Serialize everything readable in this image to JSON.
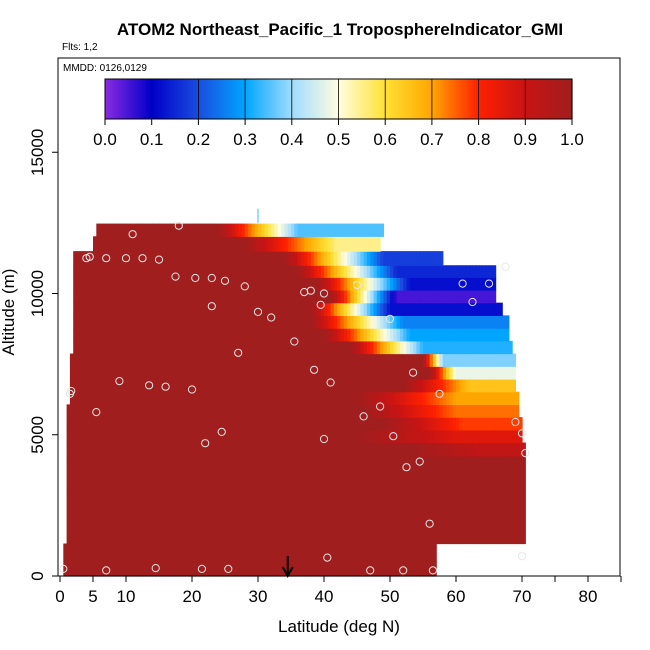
{
  "chart_data": {
    "type": "heatmap",
    "title": "ATOM2 Northeast_Pacific_1 TroposphereIndicator_GMI",
    "subtitle_lines": [
      "Flts: 1,2",
      "MMDD: 0126,0129"
    ],
    "xlabel": "Latitude (deg N)",
    "ylabel": "Altitude (m)",
    "xlim": [
      0,
      85
    ],
    "ylim": [
      0,
      18000
    ],
    "x_ticks": [
      0,
      5,
      10,
      20,
      30,
      40,
      50,
      60,
      70,
      80
    ],
    "x_minor_ticks": [
      75,
      85
    ],
    "y_ticks": [
      0,
      5000,
      10000,
      15000
    ],
    "colorbar": {
      "range": [
        0,
        1
      ],
      "tick_labels": [
        "0.0",
        "0.1",
        "0.2",
        "0.3",
        "0.4",
        "0.5",
        "0.6",
        "0.7",
        "0.8",
        "0.9",
        "1.0"
      ],
      "stops": [
        "#8a2be2",
        "#0000c8",
        "#1a4de0",
        "#00a5ff",
        "#a0dcff",
        "#fffde0",
        "#ffe135",
        "#ffa500",
        "#ff2000",
        "#c81414",
        "#a01e1e"
      ]
    },
    "arrow_marker_latitude": 34.5,
    "layers": [
      {
        "alt": 12250,
        "lat_min": 5.5,
        "lat_max": 49,
        "transition": [
          24,
          36
        ],
        "end_value": 0.35
      },
      {
        "alt": 11800,
        "lat_min": 5,
        "lat_max": 48.5,
        "transition": [
          28,
          42
        ],
        "end_value": 0.55
      },
      {
        "alt": 11200,
        "lat_min": 2,
        "lat_max": 58,
        "transition": [
          34,
          49
        ],
        "end_value": 0.18
      },
      {
        "alt": 10800,
        "lat_min": 2,
        "lat_max": 66,
        "transition": [
          36,
          51
        ],
        "end_value": 0.15
      },
      {
        "alt": 10350,
        "lat_min": 2,
        "lat_max": 66,
        "transition": [
          39,
          53
        ],
        "end_value": 0.12
      },
      {
        "alt": 9900,
        "lat_min": 2,
        "lat_max": 66,
        "transition": [
          41,
          51
        ],
        "end_value": 0.05
      },
      {
        "alt": 9450,
        "lat_min": 2,
        "lat_max": 67,
        "transition": [
          38,
          50
        ],
        "end_value": 0.12
      },
      {
        "alt": 9000,
        "lat_min": 2,
        "lat_max": 68,
        "transition": [
          38,
          52
        ],
        "end_value": 0.26
      },
      {
        "alt": 8550,
        "lat_min": 2,
        "lat_max": 68,
        "transition": [
          40,
          53
        ],
        "end_value": 0.3
      },
      {
        "alt": 8100,
        "lat_min": 2,
        "lat_max": 68.5,
        "transition": [
          44,
          55
        ],
        "end_value": 0.32
      },
      {
        "alt": 7650,
        "lat_min": 1.5,
        "lat_max": 69,
        "transition": [
          55,
          58
        ],
        "end_value": 0.38
      },
      {
        "alt": 7200,
        "lat_min": 1.5,
        "lat_max": 69,
        "transition": [
          56,
          60
        ],
        "end_value": 0.48
      },
      {
        "alt": 6750,
        "lat_min": 1.5,
        "lat_max": 69,
        "transition": [
          52,
          62
        ],
        "end_value": 0.65
      },
      {
        "alt": 6300,
        "lat_min": 1.5,
        "lat_max": 69.5,
        "transition": [
          45,
          60
        ],
        "end_value": 0.7
      },
      {
        "alt": 5850,
        "lat_min": 1,
        "lat_max": 69.5,
        "transition": [
          46,
          60
        ],
        "end_value": 0.74
      },
      {
        "alt": 5400,
        "lat_min": 1,
        "lat_max": 70,
        "transition": [
          49,
          61
        ],
        "end_value": 0.78
      },
      {
        "alt": 4950,
        "lat_min": 1,
        "lat_max": 70,
        "transition": [
          45,
          60
        ],
        "end_value": 0.86
      },
      {
        "alt": 4500,
        "lat_min": 1,
        "lat_max": 70.5,
        "transition": [
          53,
          63
        ],
        "end_value": 0.92
      },
      {
        "alt": 4000,
        "lat_min": 1,
        "lat_max": 70.5,
        "transition": [
          60,
          70
        ],
        "end_value": 1.0
      },
      {
        "alt": 2000,
        "lat_min": 1,
        "lat_max": 70.5,
        "transition": [
          0,
          0
        ],
        "end_value": 1.0
      },
      {
        "alt": 300,
        "lat_min": 0.5,
        "lat_max": 57,
        "transition": [
          0,
          0
        ],
        "end_value": 1.0
      }
    ],
    "sample_points": [
      [
        0.5,
        250
      ],
      [
        7,
        200
      ],
      [
        14.5,
        280
      ],
      [
        21.5,
        250
      ],
      [
        25.5,
        250
      ],
      [
        47,
        200
      ],
      [
        52,
        200
      ],
      [
        56.5,
        200
      ],
      [
        40.5,
        650
      ],
      [
        70,
        700
      ],
      [
        56,
        1850
      ],
      [
        52.5,
        3850
      ],
      [
        54.5,
        4050
      ],
      [
        70.5,
        4350
      ],
      [
        22,
        4700
      ],
      [
        24.5,
        5100
      ],
      [
        40,
        4850
      ],
      [
        50.5,
        4950
      ],
      [
        70,
        5050
      ],
      [
        46,
        5650
      ],
      [
        48.5,
        6000
      ],
      [
        69,
        5450
      ],
      [
        5.5,
        5800
      ],
      [
        1.5,
        6450
      ],
      [
        1.7,
        6550
      ],
      [
        9,
        6900
      ],
      [
        13.5,
        6750
      ],
      [
        16,
        6700
      ],
      [
        20,
        6600
      ],
      [
        41,
        6850
      ],
      [
        38.5,
        7300
      ],
      [
        53.5,
        7200
      ],
      [
        57.5,
        6450
      ],
      [
        27,
        7900
      ],
      [
        35.5,
        8300
      ],
      [
        30,
        9350
      ],
      [
        32,
        9150
      ],
      [
        50,
        9100
      ],
      [
        23,
        9550
      ],
      [
        39.5,
        9600
      ],
      [
        45,
        10300
      ],
      [
        25,
        10450
      ],
      [
        28,
        10250
      ],
      [
        37,
        10050
      ],
      [
        38,
        10100
      ],
      [
        40,
        10000
      ],
      [
        17.5,
        10600
      ],
      [
        20.5,
        10550
      ],
      [
        23,
        10550
      ],
      [
        61,
        10350
      ],
      [
        62.5,
        9700
      ],
      [
        65,
        10350
      ],
      [
        67.5,
        10950
      ],
      [
        4,
        11250
      ],
      [
        4.5,
        11300
      ],
      [
        7,
        11250
      ],
      [
        10,
        11250
      ],
      [
        12.5,
        11250
      ],
      [
        15,
        11200
      ],
      [
        11,
        12100
      ],
      [
        18,
        12400
      ]
    ]
  }
}
